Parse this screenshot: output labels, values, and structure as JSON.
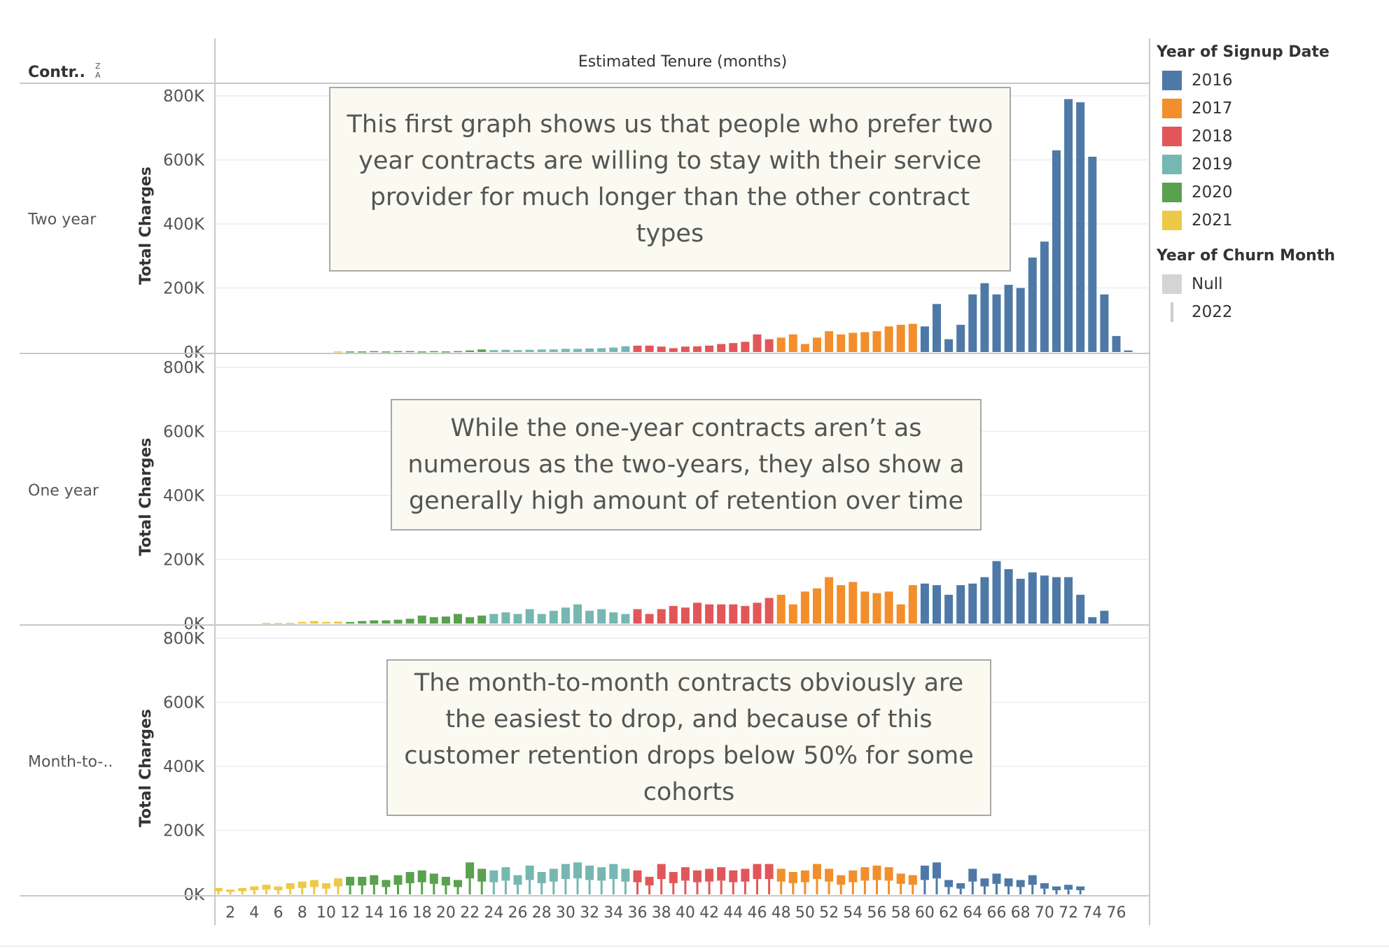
{
  "header": {
    "row_field": "Contr..",
    "column_title": "Estimated Tenure (months)"
  },
  "legend": {
    "title": "Year of Signup Date",
    "items": [
      {
        "label": "2016",
        "color": "#4e79a7"
      },
      {
        "label": "2017",
        "color": "#f28e2b"
      },
      {
        "label": "2018",
        "color": "#e15759"
      },
      {
        "label": "2019",
        "color": "#76b7b2"
      },
      {
        "label": "2020",
        "color": "#59a14f"
      },
      {
        "label": "2021",
        "color": "#edc948"
      }
    ],
    "churn_title": "Year of Churn Month",
    "churn_items": [
      {
        "label": "Null"
      },
      {
        "label": "2022"
      }
    ]
  },
  "annotations": [
    "This first graph shows us that people who prefer two year contracts are willing to stay with their service provider for much longer than the other contract types",
    "While the one-year contracts aren’t as numerous as the two-years, they also show a generally high amount of retention over time",
    "The month-to-month contracts obviously are the easiest to drop, and because of this customer retention drops below 50% for some cohorts"
  ],
  "chart_data": {
    "type": "bar",
    "stacked": true,
    "xlabel": "Estimated Tenure (months)",
    "ylabel": "Total Charges",
    "x": [
      1,
      2,
      3,
      4,
      5,
      6,
      7,
      8,
      9,
      10,
      11,
      12,
      13,
      14,
      15,
      16,
      17,
      18,
      19,
      20,
      21,
      22,
      23,
      24,
      25,
      26,
      27,
      28,
      29,
      30,
      31,
      32,
      33,
      34,
      35,
      36,
      37,
      38,
      39,
      40,
      41,
      42,
      43,
      44,
      45,
      46,
      47,
      48,
      49,
      50,
      51,
      52,
      53,
      54,
      55,
      56,
      57,
      58,
      59,
      60,
      61,
      62,
      63,
      64,
      65,
      66,
      67,
      68,
      69,
      70,
      71,
      72,
      73,
      74,
      75,
      76,
      77
    ],
    "xticks": [
      "2",
      "4",
      "6",
      "8",
      "10",
      "12",
      "14",
      "16",
      "18",
      "20",
      "22",
      "24",
      "26",
      "28",
      "30",
      "32",
      "34",
      "36",
      "38",
      "40",
      "42",
      "44",
      "46",
      "48",
      "50",
      "52",
      "54",
      "56",
      "58",
      "60",
      "62",
      "64",
      "66",
      "68",
      "70",
      "72",
      "74",
      "76"
    ],
    "yticks": [
      "0K",
      "200K",
      "400K",
      "600K",
      "800K"
    ],
    "ylim": [
      0,
      800000
    ],
    "color_by": "Year of Signup Date",
    "tenure_signup_year": {
      "2021": [
        1,
        11
      ],
      "2020": [
        12,
        23
      ],
      "2019": [
        24,
        35
      ],
      "2018": [
        36,
        47
      ],
      "2017": [
        48,
        59
      ],
      "2016": [
        60,
        77
      ]
    },
    "panels": [
      {
        "label": "Two year",
        "totals": [
          0,
          0,
          0,
          0,
          0,
          0,
          0,
          0,
          0,
          0,
          2000,
          2000,
          2000,
          3000,
          2000,
          3000,
          3000,
          2000,
          3000,
          2000,
          3000,
          5000,
          8000,
          6000,
          7000,
          6000,
          7000,
          8000,
          8000,
          10000,
          10000,
          11000,
          12000,
          14000,
          18000,
          20000,
          20000,
          17000,
          12000,
          17000,
          18000,
          20000,
          25000,
          28000,
          32000,
          55000,
          40000,
          45000,
          55000,
          25000,
          45000,
          65000,
          55000,
          60000,
          62000,
          65000,
          80000,
          85000,
          88000,
          80000,
          150000,
          40000,
          85000,
          180000,
          215000,
          180000,
          210000,
          200000,
          295000,
          345000,
          630000,
          790000,
          780000,
          610000,
          180000,
          50000,
          5000
        ],
        "retained": [
          0,
          0,
          0,
          0,
          0,
          0,
          0,
          0,
          0,
          0,
          2000,
          2000,
          2000,
          3000,
          2000,
          3000,
          3000,
          2000,
          3000,
          2000,
          3000,
          5000,
          8000,
          6000,
          7000,
          6000,
          7000,
          8000,
          8000,
          10000,
          10000,
          11000,
          12000,
          14000,
          18000,
          20000,
          20000,
          17000,
          12000,
          17000,
          18000,
          20000,
          25000,
          28000,
          32000,
          55000,
          40000,
          45000,
          55000,
          25000,
          45000,
          65000,
          55000,
          60000,
          62000,
          65000,
          80000,
          85000,
          88000,
          80000,
          150000,
          40000,
          85000,
          180000,
          215000,
          180000,
          210000,
          200000,
          295000,
          345000,
          630000,
          790000,
          780000,
          610000,
          180000,
          50000,
          5000
        ]
      },
      {
        "label": "One year",
        "totals": [
          0,
          0,
          0,
          0,
          2000,
          2000,
          2000,
          5000,
          8000,
          5000,
          6000,
          5000,
          8000,
          10000,
          10000,
          12000,
          15000,
          25000,
          20000,
          22000,
          30000,
          20000,
          25000,
          30000,
          35000,
          30000,
          45000,
          30000,
          40000,
          50000,
          60000,
          40000,
          45000,
          35000,
          30000,
          45000,
          30000,
          45000,
          55000,
          50000,
          65000,
          60000,
          60000,
          60000,
          55000,
          65000,
          80000,
          90000,
          60000,
          100000,
          110000,
          145000,
          120000,
          130000,
          100000,
          95000,
          100000,
          60000,
          120000,
          125000,
          120000,
          90000,
          120000,
          125000,
          145000,
          195000,
          170000,
          140000,
          160000,
          150000,
          145000,
          145000,
          90000,
          20000,
          40000,
          0,
          0
        ],
        "retained": [
          0,
          0,
          0,
          0,
          2000,
          2000,
          2000,
          5000,
          8000,
          5000,
          6000,
          5000,
          8000,
          10000,
          10000,
          12000,
          15000,
          25000,
          20000,
          22000,
          30000,
          20000,
          25000,
          30000,
          35000,
          30000,
          45000,
          30000,
          40000,
          50000,
          60000,
          40000,
          45000,
          35000,
          30000,
          45000,
          30000,
          45000,
          55000,
          50000,
          65000,
          60000,
          60000,
          60000,
          55000,
          65000,
          80000,
          90000,
          60000,
          100000,
          110000,
          145000,
          120000,
          130000,
          100000,
          95000,
          100000,
          60000,
          120000,
          125000,
          120000,
          90000,
          120000,
          125000,
          145000,
          195000,
          170000,
          140000,
          160000,
          150000,
          145000,
          145000,
          90000,
          20000,
          40000,
          0,
          0
        ]
      },
      {
        "label": "Month-to-..",
        "totals": [
          20000,
          15000,
          20000,
          25000,
          30000,
          25000,
          35000,
          40000,
          45000,
          35000,
          50000,
          55000,
          55000,
          60000,
          45000,
          60000,
          70000,
          75000,
          65000,
          55000,
          45000,
          100000,
          80000,
          75000,
          85000,
          60000,
          90000,
          70000,
          80000,
          95000,
          100000,
          90000,
          85000,
          95000,
          80000,
          75000,
          55000,
          95000,
          70000,
          85000,
          75000,
          80000,
          85000,
          75000,
          80000,
          95000,
          95000,
          80000,
          70000,
          75000,
          95000,
          80000,
          60000,
          75000,
          85000,
          90000,
          85000,
          65000,
          60000,
          90000,
          100000,
          45000,
          35000,
          80000,
          50000,
          65000,
          50000,
          45000,
          60000,
          35000,
          25000,
          30000,
          25000,
          0,
          0,
          0,
          0
        ],
        "retained": [
          10000,
          7000,
          10000,
          12000,
          15000,
          12000,
          18000,
          20000,
          22000,
          17000,
          25000,
          27000,
          27000,
          30000,
          22000,
          30000,
          35000,
          37000,
          32000,
          27000,
          22000,
          50000,
          40000,
          37000,
          42000,
          30000,
          45000,
          35000,
          40000,
          47000,
          50000,
          45000,
          42000,
          47000,
          40000,
          37000,
          27000,
          47000,
          35000,
          42000,
          37000,
          40000,
          42000,
          37000,
          40000,
          47000,
          47000,
          40000,
          35000,
          37000,
          47000,
          40000,
          30000,
          37000,
          42000,
          45000,
          42000,
          32000,
          30000,
          45000,
          50000,
          22000,
          17000,
          40000,
          25000,
          32000,
          25000,
          22000,
          30000,
          17000,
          12000,
          15000,
          12000,
          0,
          0,
          0,
          0
        ]
      }
    ]
  }
}
